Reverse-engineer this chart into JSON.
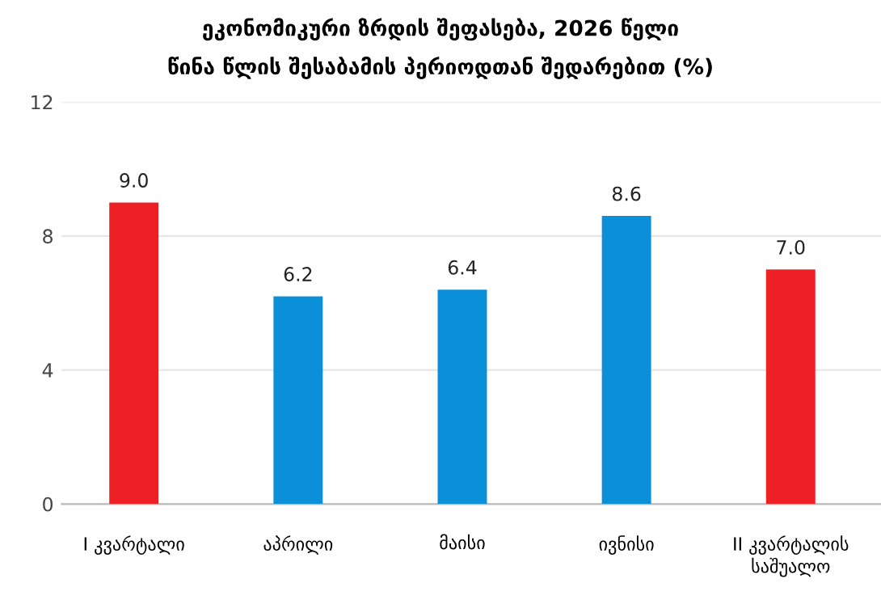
{
  "chart_data": {
    "type": "bar",
    "title": "ეკონომიკური ზრდის შეფასება, 2026 წელი\nწინა წლის შესაბამის პერიოდთან შედარებით (%)",
    "categories": [
      "I კვარტალი",
      "აპრილი",
      "მაისი",
      "ივნისი",
      "II კვარტალის\nსაშუალო"
    ],
    "values": [
      9.0,
      6.2,
      6.4,
      8.6,
      7.0
    ],
    "colors": [
      "#ee2026",
      "#0b8fd8",
      "#0b8fd8",
      "#0b8fd8",
      "#ee2026"
    ],
    "value_labels": [
      "9.0",
      "6.2",
      "6.4",
      "8.6",
      "7.0"
    ],
    "ylim": [
      0,
      12
    ],
    "yticks": [
      0,
      4,
      8,
      12
    ],
    "grid": "y"
  }
}
